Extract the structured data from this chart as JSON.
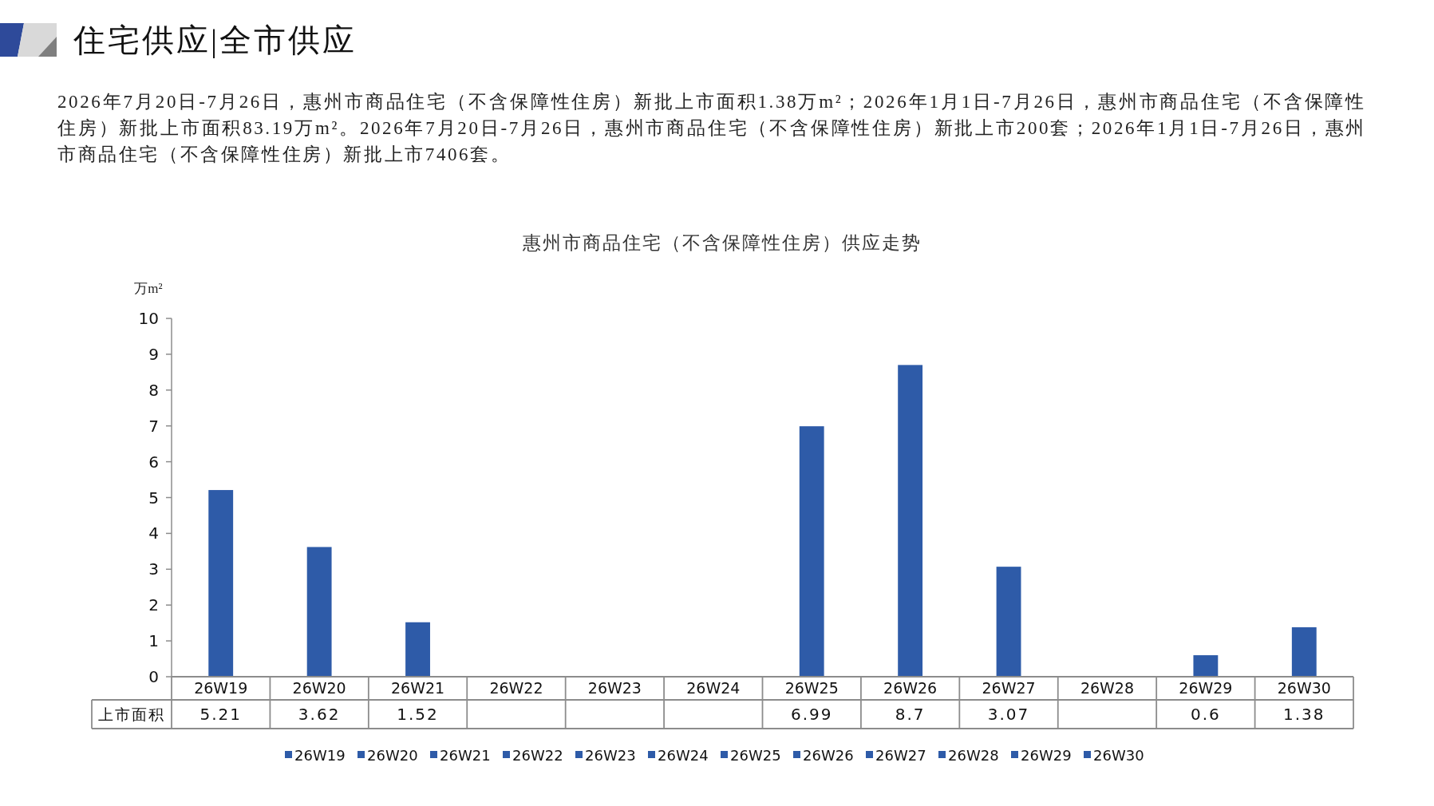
{
  "chart_data": {
    "type": "bar",
    "title": "惠州市商品住宅（不含保障性住房）供应走势",
    "annotations": [
      "住宅供应|全市供应",
      "2026年7月20日-7月26日，惠州市商品住宅（不含保障性住房）新批上市面积1.38万m²；2026年1月1日-7月26日，惠州市商品住宅（不含保障性住房）新批上市面积83.19万m²。2026年7月20日-7月26日，惠州市商品住宅（不含保障性住房）新批上市200套；2026年1月1日-7月26日，惠州市商品住宅（不含保障性住房）新批上市7406套。"
    ],
    "ylabel": "万m²",
    "categories": [
      "26W19",
      "26W20",
      "26W21",
      "26W22",
      "26W23",
      "26W24",
      "26W25",
      "26W26",
      "26W27",
      "26W28",
      "26W29",
      "26W30"
    ],
    "series": [
      {
        "name": "上市面积",
        "color": "#2e5ba8",
        "values": [
          5.21,
          3.62,
          1.52,
          null,
          null,
          null,
          6.99,
          8.7,
          3.07,
          null,
          0.6,
          1.38
        ]
      }
    ],
    "ylim": [
      0,
      10
    ],
    "yticks": [
      0,
      1,
      2,
      3,
      4,
      5,
      6,
      7,
      8,
      9,
      10
    ],
    "grid": false,
    "data_labels": true,
    "legend": "bottom"
  }
}
